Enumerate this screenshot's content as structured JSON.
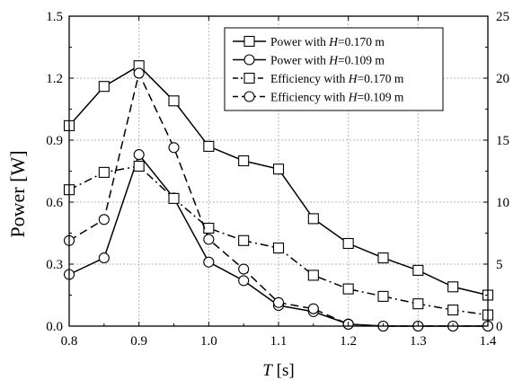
{
  "chart_data": {
    "type": "line",
    "xlabel": "T [s]",
    "xlabel_parts": [
      "T",
      " [s]"
    ],
    "ylabel": "Power [W]",
    "xlim": [
      0.8,
      1.4
    ],
    "ylim": [
      0,
      1.5
    ],
    "y2lim": [
      0,
      25
    ],
    "xticks": [
      0.8,
      0.9,
      1.0,
      1.1,
      1.2,
      1.3,
      1.4
    ],
    "yticks": [
      0.0,
      0.3,
      0.6,
      0.9,
      1.2,
      1.5
    ],
    "y2ticks": [
      0,
      5,
      10,
      15,
      20,
      25
    ],
    "grid": true,
    "legend_position": "top-right",
    "x": [
      0.8,
      0.85,
      0.9,
      0.95,
      1.0,
      1.05,
      1.1,
      1.15,
      1.2,
      1.25,
      1.3,
      1.35,
      1.4
    ],
    "series": [
      {
        "name": "Power with H=0.170 m",
        "label_parts": [
          "Power with ",
          "H",
          "=0.170 m"
        ],
        "axis": "left",
        "marker": "square",
        "line": "solid",
        "values": [
          0.97,
          1.16,
          1.26,
          1.09,
          0.87,
          0.8,
          0.76,
          0.52,
          0.4,
          0.33,
          0.27,
          0.19,
          0.15
        ]
      },
      {
        "name": "Power with H=0.109 m",
        "label_parts": [
          "Power with ",
          "H",
          "=0.109 m"
        ],
        "axis": "left",
        "marker": "circle",
        "line": "solid",
        "values": [
          0.25,
          0.33,
          0.83,
          0.62,
          0.31,
          0.22,
          0.1,
          0.07,
          0.01,
          0.0,
          0.0,
          0.0,
          0.0
        ]
      },
      {
        "name": "Efficiency with H=0.170 m",
        "label_parts": [
          "Efficiency with ",
          "H",
          "=0.170 m"
        ],
        "axis": "right",
        "marker": "square",
        "line": "dashdot",
        "values": [
          11.0,
          12.4,
          12.9,
          10.3,
          7.9,
          6.9,
          6.3,
          4.1,
          3.0,
          2.4,
          1.8,
          1.3,
          0.9
        ]
      },
      {
        "name": "Efficiency with H=0.109 m",
        "label_parts": [
          "Efficiency with ",
          "H",
          "=0.109 m"
        ],
        "axis": "right",
        "marker": "circle",
        "line": "dashed",
        "values": [
          6.9,
          8.6,
          20.4,
          14.4,
          7.0,
          4.6,
          1.9,
          1.4,
          0.15,
          0.0,
          0.0,
          0.0,
          0.0
        ]
      }
    ]
  }
}
